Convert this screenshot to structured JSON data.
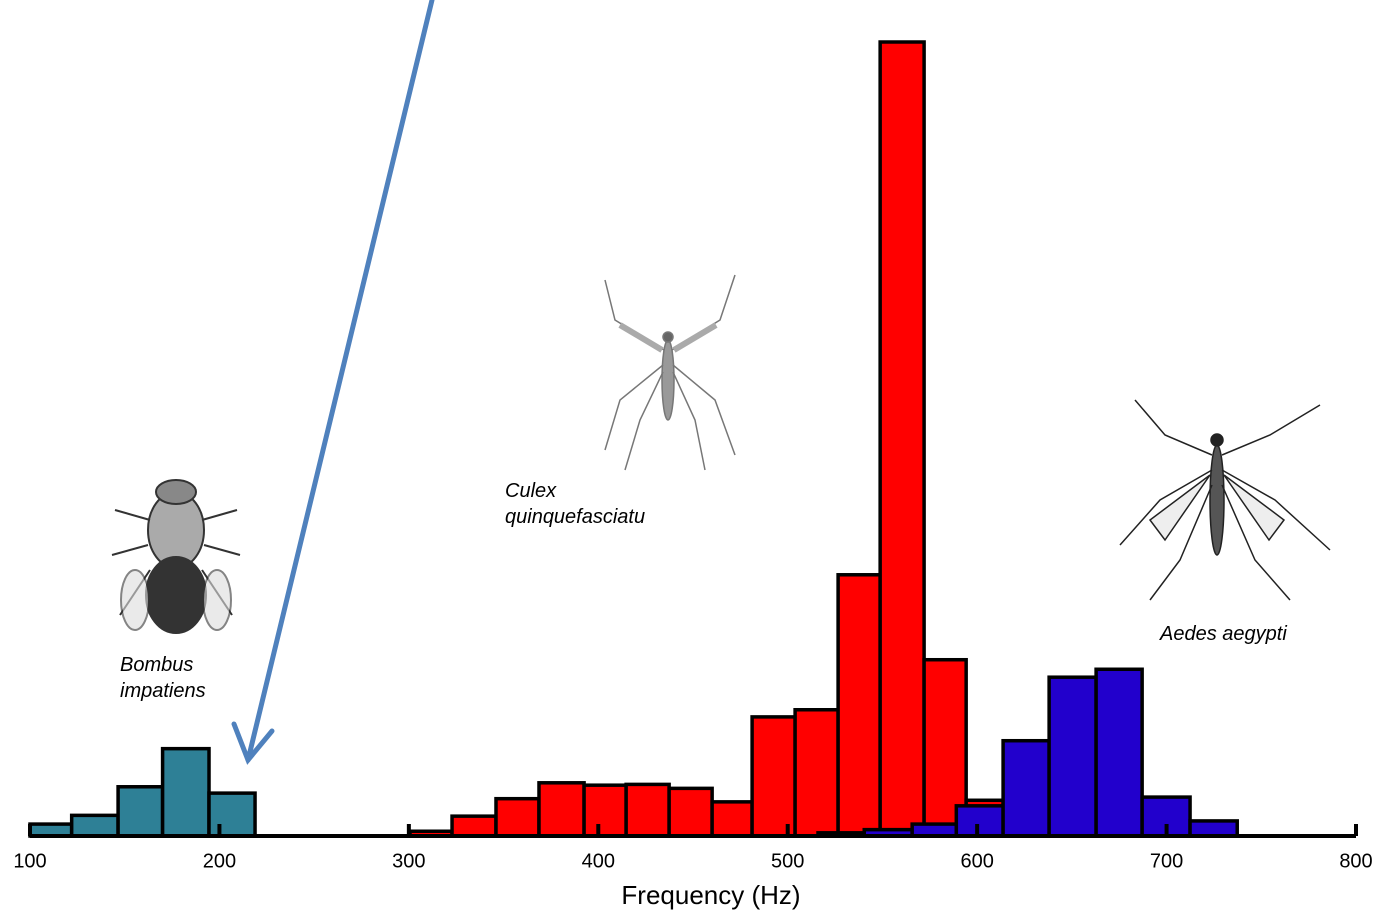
{
  "chart_data": {
    "type": "histogram",
    "xlabel": "Frequency (Hz)",
    "xlim": [
      100,
      800
    ],
    "xticks": [
      100,
      200,
      300,
      400,
      500,
      600,
      700,
      800
    ],
    "ylim": [
      0,
      100
    ],
    "series": [
      {
        "name": "Bombus impatiens",
        "color": "#2e8096",
        "bins": [
          100,
          122,
          146.5,
          170,
          194.5,
          218.8
        ],
        "values": [
          1.5,
          2.6,
          6.2,
          11.0,
          5.4
        ]
      },
      {
        "name": "Culex quinquefasciatu",
        "color": "#ff0000",
        "bins": [
          300.6,
          322.8,
          346,
          368.7,
          392.5,
          414.7,
          437.4,
          460.1,
          481.2,
          503.9,
          526.6,
          548.8,
          572,
          594.2,
          613.7
        ],
        "values": [
          0.6,
          2.5,
          4.7,
          6.7,
          6.4,
          6.5,
          6.0,
          4.3,
          15.0,
          15.9,
          32.9,
          100,
          22.2,
          4.5
        ]
      },
      {
        "name": "Aedes aegypti",
        "color": "#2200cc",
        "bins": [
          516,
          540.4,
          565.7,
          589,
          613.7,
          638,
          662.8,
          687.1,
          712.4,
          737.3
        ],
        "values": [
          0.4,
          0.8,
          1.5,
          3.8,
          12.0,
          20.0,
          21.0,
          4.9,
          1.9
        ]
      }
    ]
  }
}
